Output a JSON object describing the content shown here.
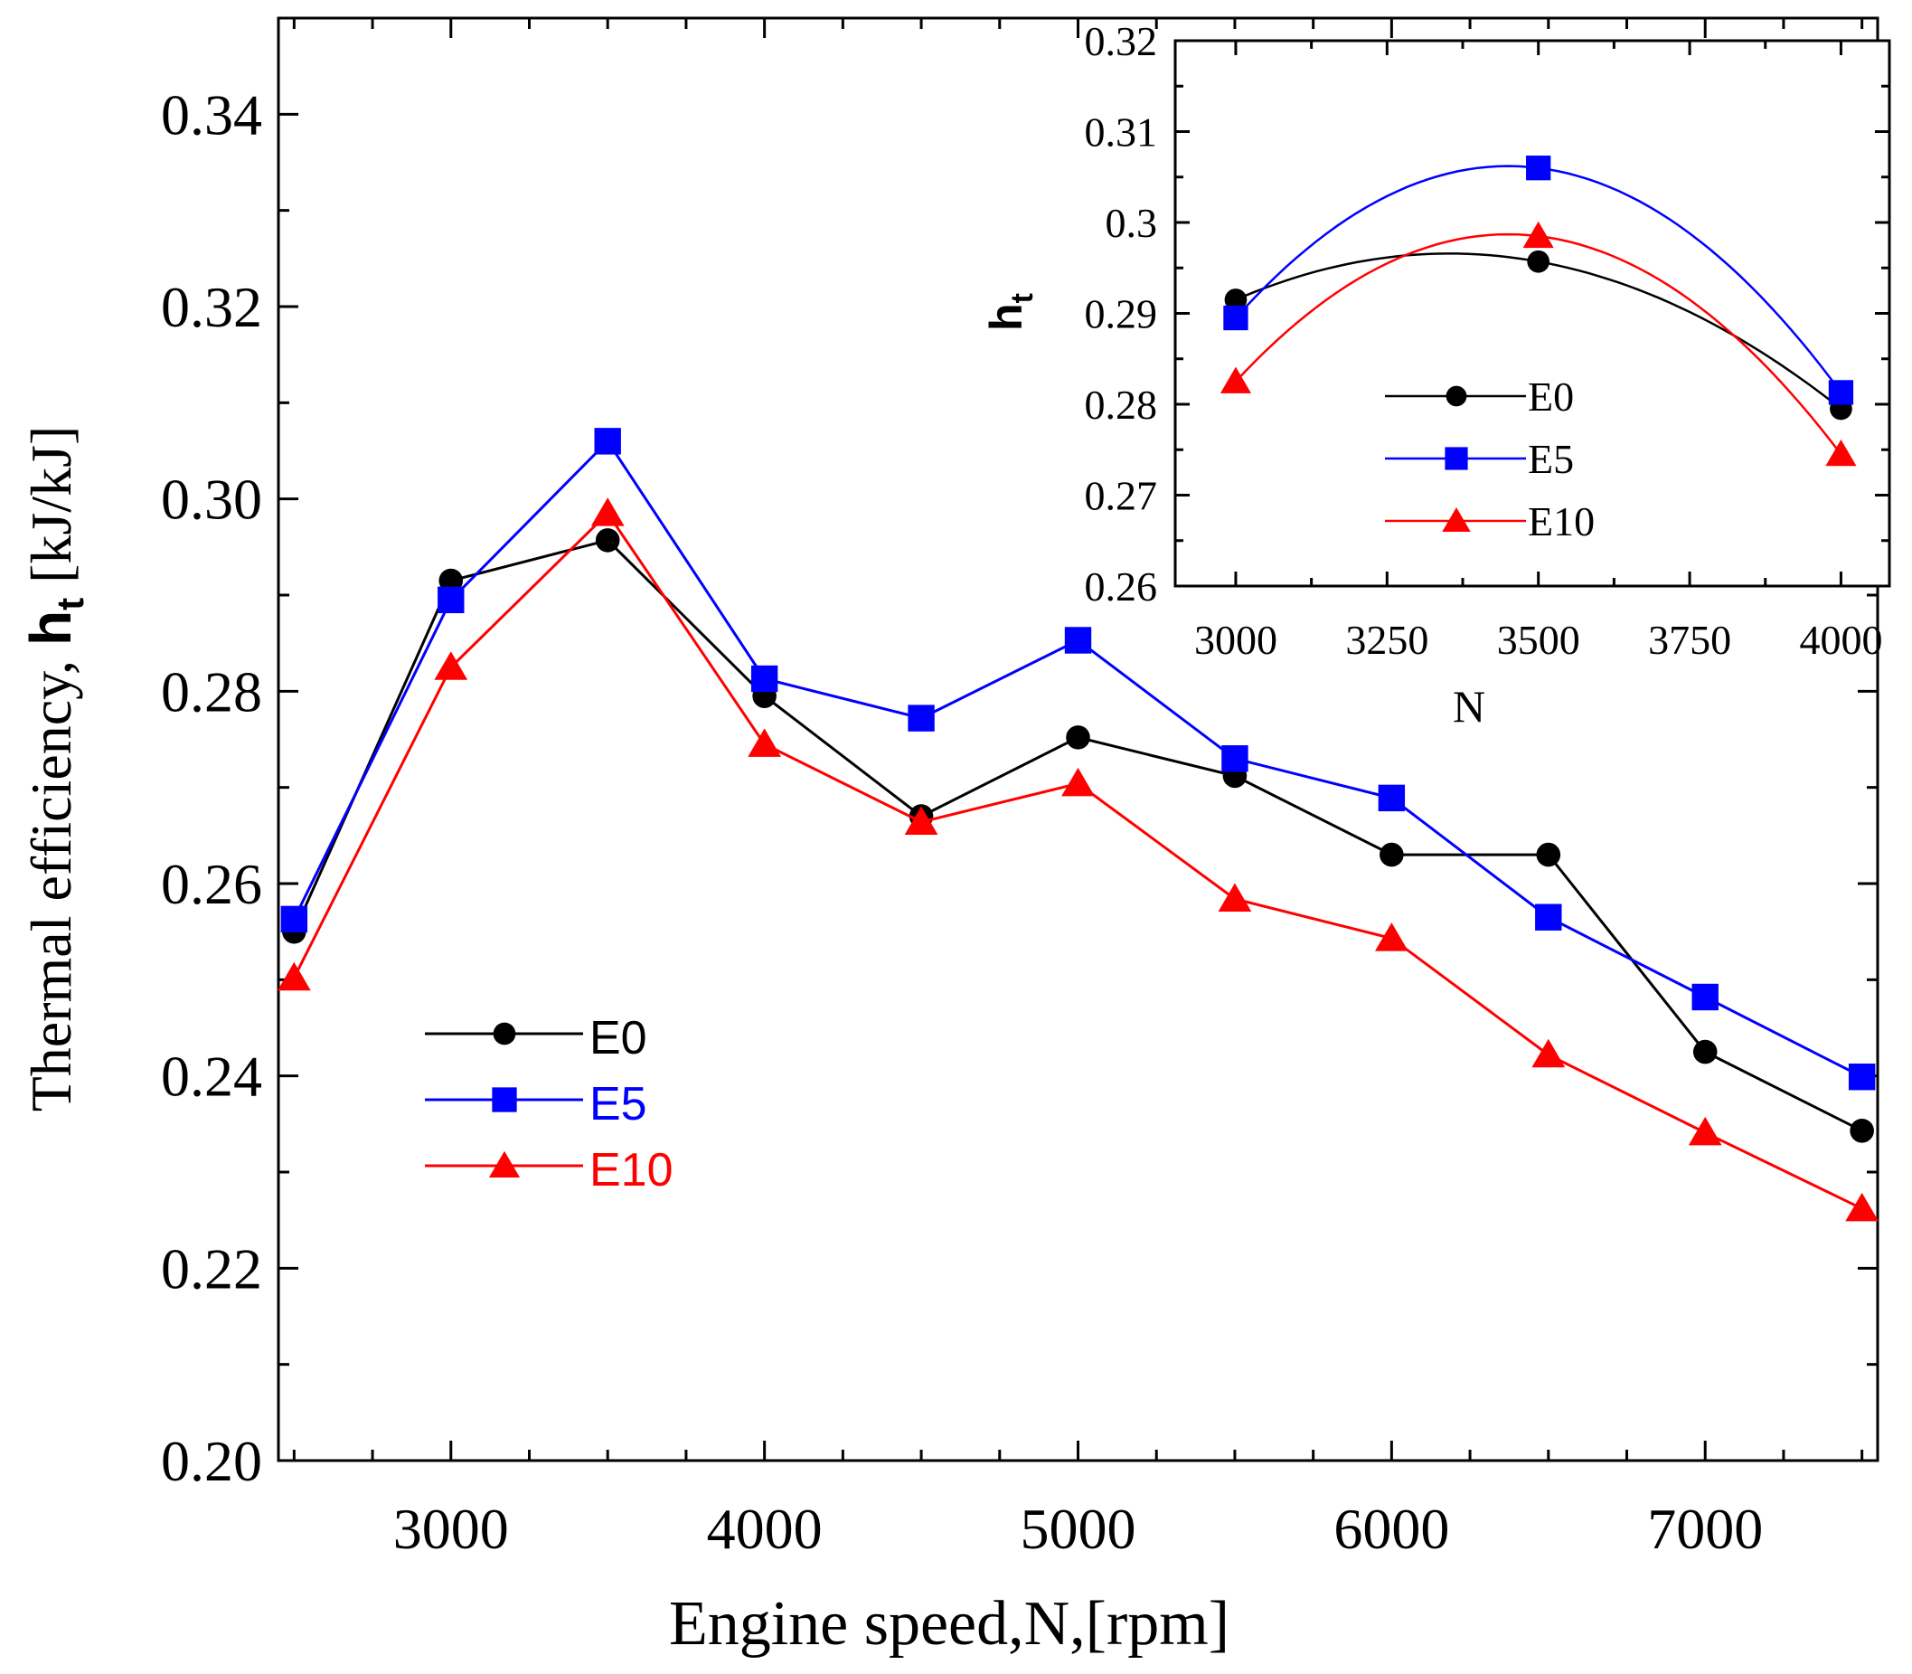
{
  "chart_data": [
    {
      "id": "main",
      "type": "line",
      "xlabel": "Engine speed,N,[rpm]",
      "ylabel_prefix": "Thermal efficiency, ",
      "ylabel_symbol": "h",
      "ylabel_subscript": "t",
      "ylabel_unit": " [kJ/kJ]",
      "xlim": [
        2450,
        7550
      ],
      "ylim": [
        0.2,
        0.35
      ],
      "x_major_ticks": [
        3000,
        4000,
        5000,
        6000,
        7000
      ],
      "x_minor_ticks": [
        2500,
        3500,
        4500,
        5500,
        6500,
        7500
      ],
      "y_major_ticks": [
        0.2,
        0.22,
        0.24,
        0.26,
        0.28,
        0.3,
        0.32,
        0.34
      ],
      "y_tick_labels": [
        "0.20",
        "0.22",
        "0.24",
        "0.26",
        "0.28",
        "0.30",
        "0.32",
        "0.34"
      ],
      "x": [
        2500,
        3000,
        3500,
        4000,
        4500,
        5000,
        5500,
        6000,
        6500,
        7000,
        7500
      ],
      "series": [
        {
          "name": "E0",
          "color": "#000000",
          "marker": "circle",
          "values": [
            0.255,
            0.2915,
            0.2957,
            0.2795,
            0.267,
            0.2752,
            0.2712,
            0.263,
            0.263,
            0.2425,
            0.2343
          ]
        },
        {
          "name": "E5",
          "color": "#0000ff",
          "marker": "square",
          "values": [
            0.2563,
            0.2895,
            0.306,
            0.2813,
            0.2772,
            0.2853,
            0.273,
            0.2689,
            0.2565,
            0.2482,
            0.2399
          ]
        },
        {
          "name": "E10",
          "color": "#ff0000",
          "marker": "triangle",
          "values": [
            0.2502,
            0.2825,
            0.2985,
            0.2745,
            0.2664,
            0.2704,
            0.2584,
            0.2543,
            0.2422,
            0.2341,
            0.2262
          ]
        }
      ],
      "legend": {
        "position": "lower-left",
        "entries": [
          "E0",
          "E5",
          "E10"
        ]
      }
    },
    {
      "id": "inset",
      "type": "line",
      "curve": "quadratic-fit",
      "xlabel": "N",
      "ylabel_symbol": "h",
      "ylabel_subscript": "t",
      "xlim": [
        2900,
        4080
      ],
      "ylim": [
        0.26,
        0.32
      ],
      "x_major_ticks": [
        3000,
        3250,
        3500,
        3750,
        4000
      ],
      "y_major_ticks": [
        0.26,
        0.27,
        0.28,
        0.29,
        0.3,
        0.31,
        0.32
      ],
      "y_tick_labels": [
        "0.26",
        "0.27",
        "0.28",
        "0.29",
        "0.3",
        "0.31",
        "0.32"
      ],
      "x": [
        3000,
        3500,
        4000
      ],
      "series": [
        {
          "name": "E0",
          "color": "#000000",
          "marker": "circle",
          "values": [
            0.2915,
            0.2957,
            0.2795
          ]
        },
        {
          "name": "E5",
          "color": "#0000ff",
          "marker": "square",
          "values": [
            0.2895,
            0.306,
            0.2813
          ]
        },
        {
          "name": "E10",
          "color": "#ff0000",
          "marker": "triangle",
          "values": [
            0.2825,
            0.2985,
            0.2745
          ]
        }
      ],
      "legend": {
        "position": "center",
        "entries": [
          "E0",
          "E5",
          "E10"
        ]
      }
    }
  ]
}
